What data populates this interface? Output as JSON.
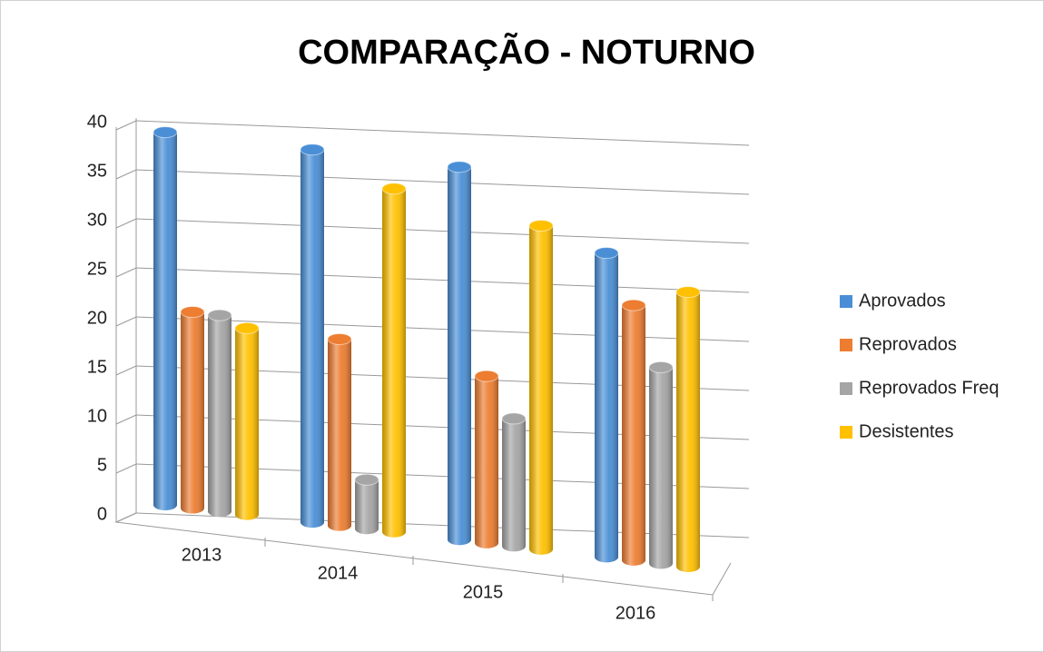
{
  "chart_data": {
    "type": "bar3d",
    "title": "COMPARAÇÃO - NOTURNO",
    "categories": [
      "2013",
      "2014",
      "2015",
      "2016"
    ],
    "series": [
      {
        "name": "Aprovados",
        "color": "#4a8fd6",
        "values": [
          38,
          38,
          38,
          31
        ]
      },
      {
        "name": "Reprovados",
        "color": "#ed7d31",
        "values": [
          20,
          19,
          17,
          26
        ]
      },
      {
        "name": "Reprovados Freq",
        "color": "#a5a5a5",
        "values": [
          20,
          5,
          13,
          20
        ]
      },
      {
        "name": "Desistentes",
        "color": "#ffc000",
        "values": [
          19,
          35,
          33,
          28
        ]
      }
    ],
    "ylim": [
      0,
      40
    ],
    "yticks": [
      0,
      5,
      10,
      15,
      20,
      25,
      30,
      35,
      40
    ],
    "grid": true,
    "legend": "right"
  }
}
